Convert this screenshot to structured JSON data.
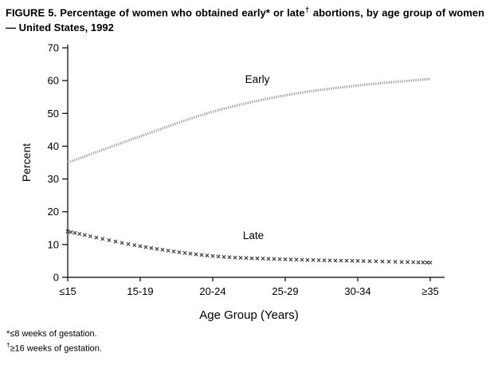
{
  "figure": {
    "title_parts": {
      "before_dagger": "FIGURE 5. Percentage of women who obtained early* or late",
      "dagger": "†",
      "after_dagger": " abortions, by age group of women — United States, 1992"
    },
    "footnotes": [
      {
        "marker": "*",
        "text": "≤8 weeks of gestation."
      },
      {
        "marker": "†",
        "text": "≥16 weeks of gestation."
      }
    ]
  },
  "chart_data": {
    "type": "line",
    "title": "FIGURE 5. Percentage of women who obtained early* or late† abortions, by age group of women — United States, 1992",
    "categories": [
      "≤15",
      "15-19",
      "20-24",
      "25-29",
      "30-34",
      "≥35"
    ],
    "series": [
      {
        "name": "Early",
        "values": [
          35,
          43,
          50.5,
          55.5,
          58.5,
          60.5
        ],
        "style": "dotted",
        "color": "#9a9a9a"
      },
      {
        "name": "Late",
        "values": [
          14,
          9.5,
          6.5,
          5.5,
          5,
          4.5
        ],
        "style": "x-markers",
        "color": "#333333"
      }
    ],
    "xlabel": "Age Group (Years)",
    "ylabel": "Percent",
    "ylim": [
      0,
      70
    ],
    "ytick_interval": 10,
    "legend": "inline-labels",
    "grid": false
  }
}
